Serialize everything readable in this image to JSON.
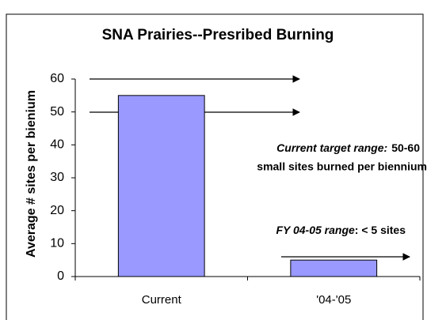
{
  "chart_data": {
    "type": "bar",
    "title": "SNA Prairies--Presribed Burning",
    "y_label": "Average # sites per bienium",
    "categories": [
      "Current",
      "'04-'05"
    ],
    "values": [
      55,
      5
    ],
    "color": "#9999ff",
    "ylim": [
      0,
      60
    ],
    "yticks": [
      0,
      10,
      20,
      30,
      40,
      50,
      60
    ],
    "grid": false,
    "annotations": [
      {
        "parts": [
          "Current target range:",
          "50-60"
        ],
        "line2": "small sites burned per biennium"
      },
      {
        "parts": [
          "FY 04-05 range",
          ": < 5 sites"
        ]
      }
    ]
  }
}
